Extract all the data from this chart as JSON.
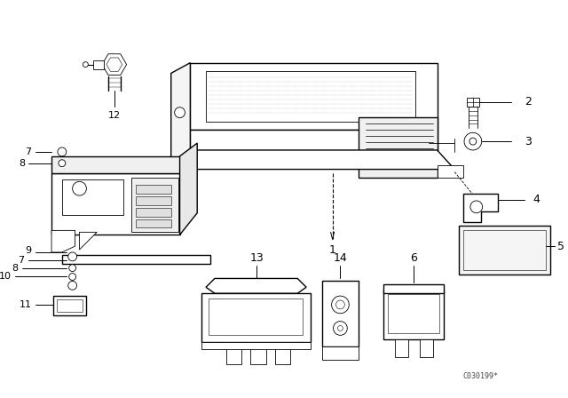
{
  "bg_color": "#ffffff",
  "line_color": "#000000",
  "fig_width": 6.4,
  "fig_height": 4.48,
  "dpi": 100,
  "watermark": "C030199*",
  "lw_main": 1.0,
  "lw_detail": 0.6,
  "lw_thin": 0.4
}
